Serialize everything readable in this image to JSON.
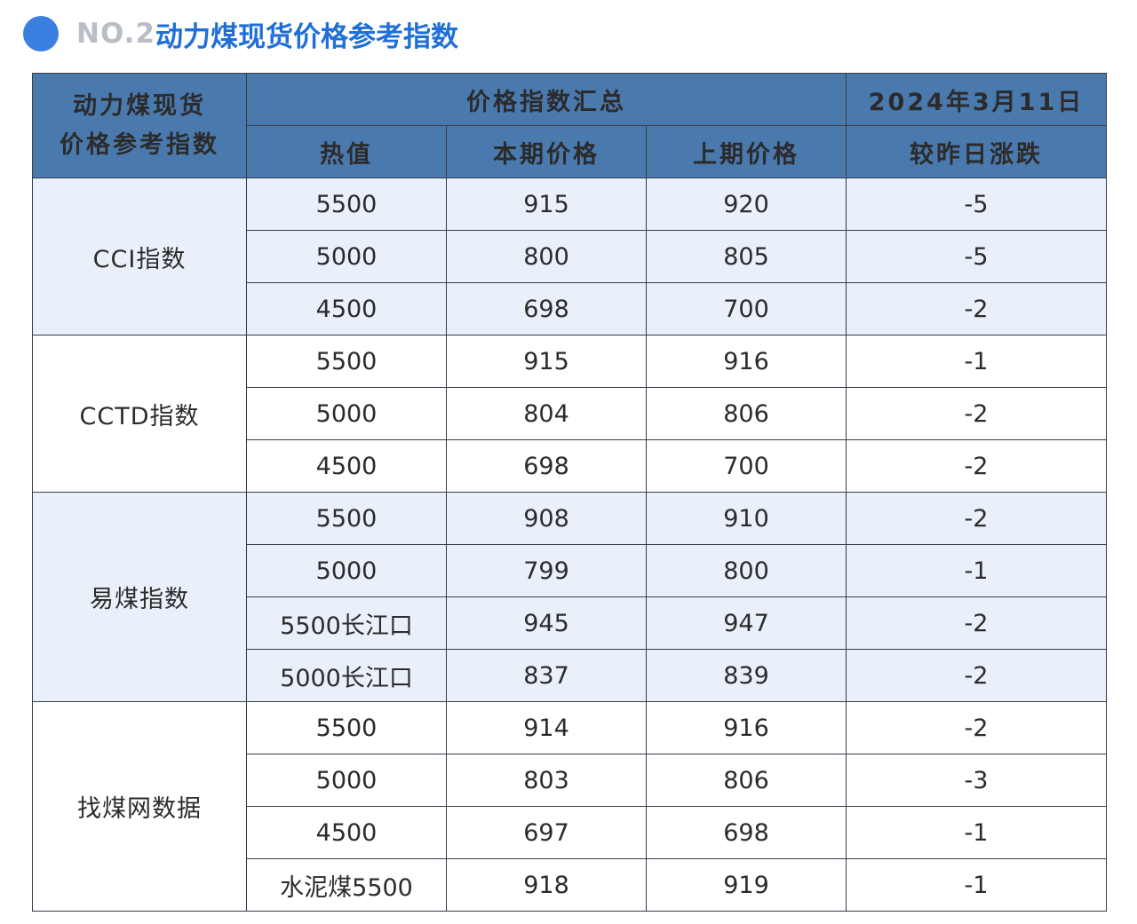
{
  "heading": {
    "no": "NO.2",
    "title": "动力煤现货价格参考指数"
  },
  "table": {
    "corner_line1": "动力煤现货",
    "corner_line2": "价格参考指数",
    "summary_label": "价格指数汇总",
    "date": "2024年3月11日",
    "columns": [
      "热值",
      "本期价格",
      "上期价格",
      "较昨日涨跌"
    ],
    "groups": [
      {
        "name": "CCI指数",
        "rows": [
          {
            "calorific": "5500",
            "current": "915",
            "previous": "920",
            "change": "-5"
          },
          {
            "calorific": "5000",
            "current": "800",
            "previous": "805",
            "change": "-5"
          },
          {
            "calorific": "4500",
            "current": "698",
            "previous": "700",
            "change": "-2"
          }
        ]
      },
      {
        "name": "CCTD指数",
        "rows": [
          {
            "calorific": "5500",
            "current": "915",
            "previous": "916",
            "change": "-1"
          },
          {
            "calorific": "5000",
            "current": "804",
            "previous": "806",
            "change": "-2"
          },
          {
            "calorific": "4500",
            "current": "698",
            "previous": "700",
            "change": "-2"
          }
        ]
      },
      {
        "name": "易煤指数",
        "rows": [
          {
            "calorific": "5500",
            "current": "908",
            "previous": "910",
            "change": "-2"
          },
          {
            "calorific": "5000",
            "current": "799",
            "previous": "800",
            "change": "-1"
          },
          {
            "calorific": "5500长江口",
            "current": "945",
            "previous": "947",
            "change": "-2"
          },
          {
            "calorific": "5000长江口",
            "current": "837",
            "previous": "839",
            "change": "-2"
          }
        ]
      },
      {
        "name": "找煤网数据",
        "rows": [
          {
            "calorific": "5500",
            "current": "914",
            "previous": "916",
            "change": "-2"
          },
          {
            "calorific": "5000",
            "current": "803",
            "previous": "806",
            "change": "-3"
          },
          {
            "calorific": "4500",
            "current": "697",
            "previous": "698",
            "change": "-1"
          },
          {
            "calorific": "水泥煤5500",
            "current": "918",
            "previous": "919",
            "change": "-1"
          }
        ]
      }
    ]
  },
  "colors": {
    "header_bg": "#4a79ad",
    "band_bg": "#eaf0f9",
    "change_text": "#2e9c6a",
    "heading_blue": "#1f6fd6",
    "dot_blue": "#3b7fe0"
  }
}
